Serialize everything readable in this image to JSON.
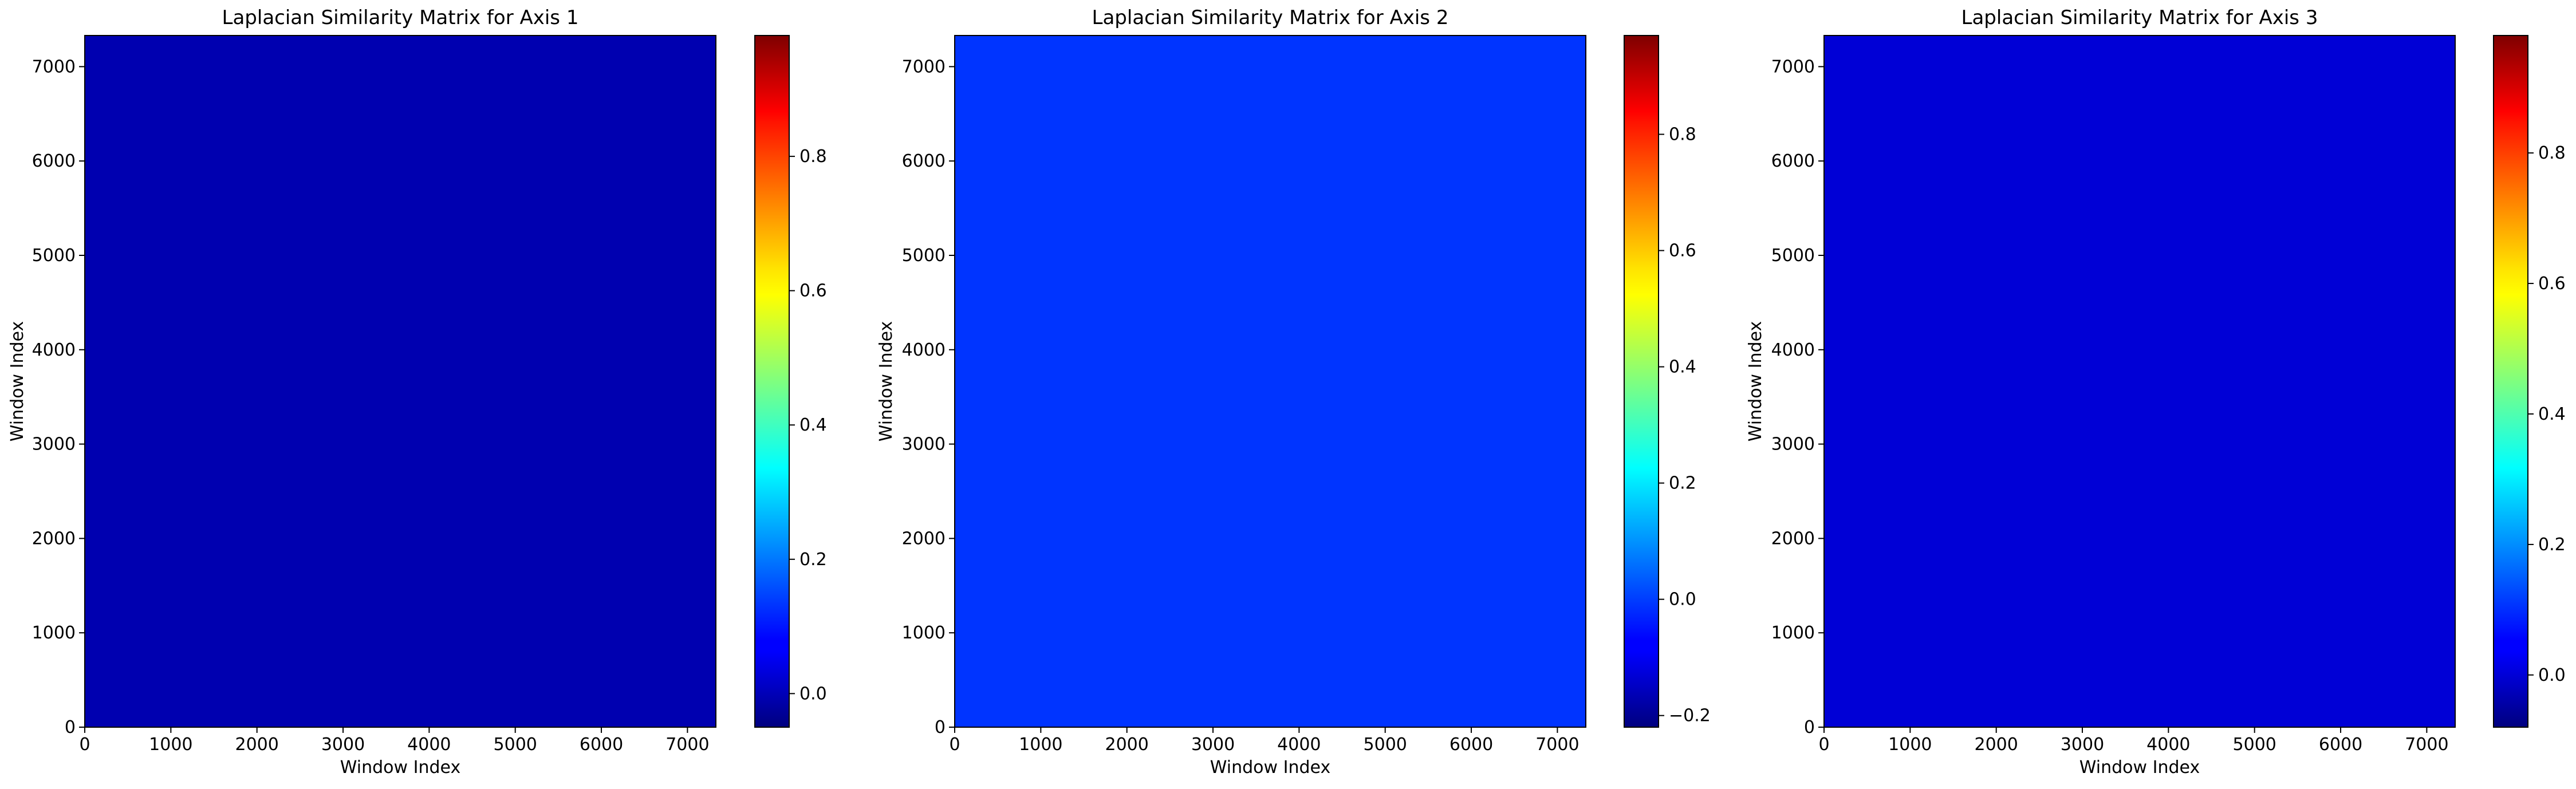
{
  "chart_data": [
    {
      "type": "heatmap",
      "title": "Laplacian Similarity Matrix for Axis 1",
      "xlabel": "Window Index",
      "ylabel": "Window Index",
      "xlim": [
        0,
        7330
      ],
      "ylim": [
        0,
        7330
      ],
      "xticks": [
        0,
        1000,
        2000,
        3000,
        4000,
        5000,
        6000,
        7000
      ],
      "yticks": [
        0,
        1000,
        2000,
        3000,
        4000,
        5000,
        6000,
        7000
      ],
      "colormap": "jet",
      "colorbar": {
        "range": [
          -0.05,
          0.98
        ],
        "ticks": [
          0.0,
          0.2,
          0.4,
          0.6,
          0.8
        ],
        "ticklabels": [
          "0.0",
          "0.2",
          "0.4",
          "0.6",
          "0.8"
        ]
      },
      "dominant_value": 0.0
    },
    {
      "type": "heatmap",
      "title": "Laplacian Similarity Matrix for Axis 2",
      "xlabel": "Window Index",
      "ylabel": "Window Index",
      "xlim": [
        0,
        7330
      ],
      "ylim": [
        0,
        7330
      ],
      "xticks": [
        0,
        1000,
        2000,
        3000,
        4000,
        5000,
        6000,
        7000
      ],
      "yticks": [
        0,
        1000,
        2000,
        3000,
        4000,
        5000,
        6000,
        7000
      ],
      "colormap": "jet",
      "colorbar": {
        "range": [
          -0.22,
          0.97
        ],
        "ticks": [
          -0.2,
          0.0,
          0.2,
          0.4,
          0.6,
          0.8
        ],
        "ticklabels": [
          "−0.2",
          "0.0",
          "0.2",
          "0.4",
          "0.6",
          "0.8"
        ]
      },
      "dominant_value": 0.0
    },
    {
      "type": "heatmap",
      "title": "Laplacian Similarity Matrix for Axis 3",
      "xlabel": "Window Index",
      "ylabel": "Window Index",
      "xlim": [
        0,
        7330
      ],
      "ylim": [
        0,
        7330
      ],
      "xticks": [
        0,
        1000,
        2000,
        3000,
        4000,
        5000,
        6000,
        7000
      ],
      "yticks": [
        0,
        1000,
        2000,
        3000,
        4000,
        5000,
        6000,
        7000
      ],
      "colormap": "jet",
      "colorbar": {
        "range": [
          -0.08,
          0.98
        ],
        "ticks": [
          0.0,
          0.2,
          0.4,
          0.6,
          0.8
        ],
        "ticklabels": [
          "0.0",
          "0.2",
          "0.4",
          "0.6",
          "0.8"
        ]
      },
      "dominant_value": 0.0
    }
  ]
}
